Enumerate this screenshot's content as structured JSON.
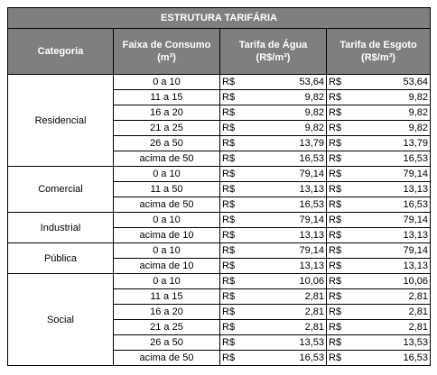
{
  "title": "ESTRUTURA TARIFÁRIA",
  "currency": "R$",
  "header": [
    {
      "lines": [
        "Categoria"
      ]
    },
    {
      "lines": [
        "Faixa de Consumo",
        "(m³)"
      ]
    },
    {
      "lines": [
        "Tarifa de Água",
        "(R$/m³)"
      ]
    },
    {
      "lines": [
        "Tarifa de Esgoto",
        "(R$/m³)"
      ]
    }
  ],
  "groups": [
    {
      "category": "Residencial",
      "rows": [
        [
          "0 a 10",
          "53,64",
          "53,64"
        ],
        [
          "11 a 15",
          "9,82",
          "9,82"
        ],
        [
          "16 a 20",
          "9,82",
          "9,82"
        ],
        [
          "21 a 25",
          "9,82",
          "9,82"
        ],
        [
          "26 a 50",
          "13,79",
          "13,79"
        ],
        [
          "acima de 50",
          "16,53",
          "16,53"
        ]
      ]
    },
    {
      "category": "Comercial",
      "rows": [
        [
          "0 a 10",
          "79,14",
          "79,14"
        ],
        [
          "11 a 50",
          "13,13",
          "13,13"
        ],
        [
          "acima de 50",
          "16,53",
          "16,53"
        ]
      ]
    },
    {
      "category": "Industrial",
      "rows": [
        [
          "0 a 10",
          "79,14",
          "79,14"
        ],
        [
          "acima de 10",
          "13,13",
          "13,13"
        ]
      ]
    },
    {
      "category": "Pública",
      "rows": [
        [
          "0 a 10",
          "79,14",
          "79,14"
        ],
        [
          "acima de 10",
          "13,13",
          "13,13"
        ]
      ]
    },
    {
      "category": "Social",
      "rows": [
        [
          "0 a 10",
          "10,06",
          "10,06"
        ],
        [
          "11 a 15",
          "2,81",
          "2,81"
        ],
        [
          "16 a 20",
          "2,81",
          "2,81"
        ],
        [
          "21 a 25",
          "2,81",
          "2,81"
        ],
        [
          "26 a 50",
          "13,53",
          "13,53"
        ],
        [
          "acima de 50",
          "16,53",
          "16,53"
        ]
      ]
    }
  ]
}
